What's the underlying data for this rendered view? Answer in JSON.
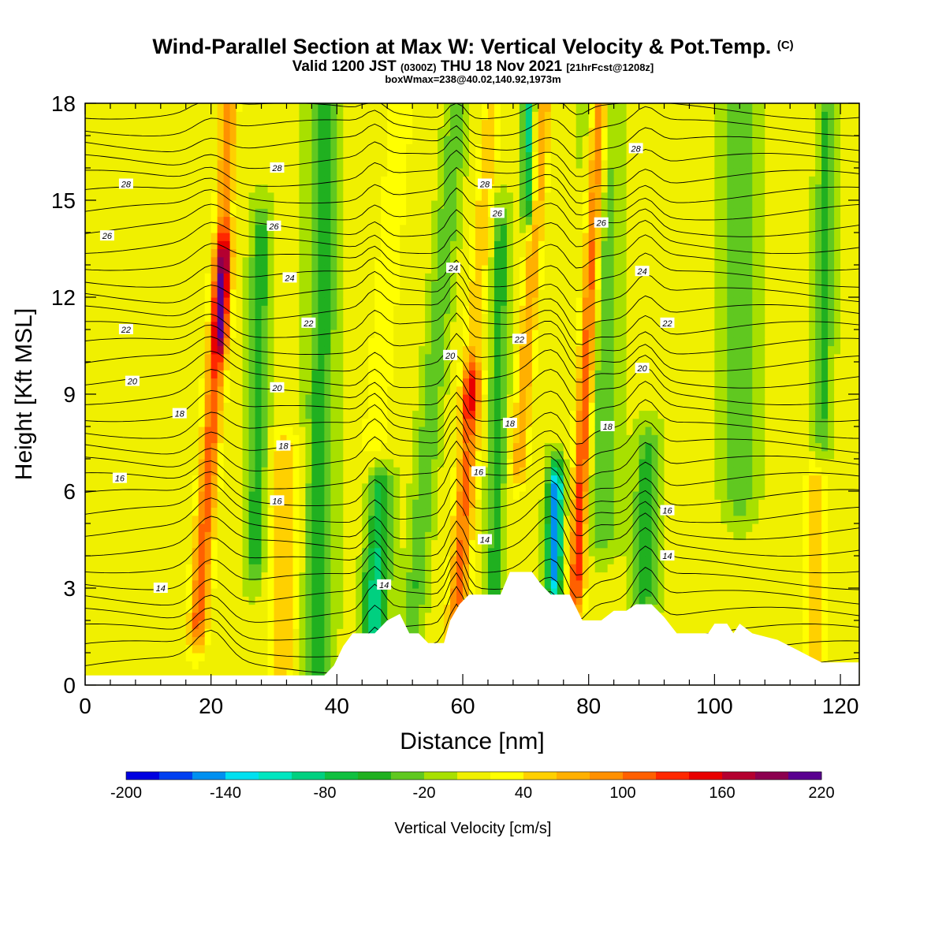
{
  "header": {
    "title": "Wind-Parallel Section at Max W: Vertical Velocity & Pot.Temp.",
    "copyright": "(C)",
    "valid_prefix": "Valid 1200 JST",
    "valid_utc": "(0300Z)",
    "valid_date": "THU 18 Nov 2021",
    "forecast": "[21hrFcst@1208z]",
    "boxwmax": "boxWmax=238@40.02,140.92,1973m"
  },
  "chart_data": {
    "type": "heatmap",
    "xlabel": "Distance [nm]",
    "ylabel": "Height [Kft MSL]",
    "xlim": [
      0,
      123
    ],
    "ylim": [
      0,
      18
    ],
    "x_ticks": [
      "0",
      "20",
      "40",
      "60",
      "80",
      "100",
      "120"
    ],
    "y_ticks": [
      "0",
      "3",
      "6",
      "9",
      "12",
      "15",
      "18"
    ],
    "colorbar": {
      "label": "Vertical Velocity [cm/s]",
      "min": -200,
      "max": 220,
      "step": 20,
      "tick_labels": [
        "-200",
        "-140",
        "-80",
        "-20",
        "40",
        "100",
        "160",
        "220"
      ],
      "colors": [
        "#0000e0",
        "#0040f0",
        "#0090f0",
        "#00e0f0",
        "#00e6c0",
        "#00d080",
        "#10c040",
        "#20b020",
        "#60c820",
        "#a8e000",
        "#f0f000",
        "#ffff00",
        "#ffd000",
        "#ffb000",
        "#ff9000",
        "#ff6000",
        "#ff2800",
        "#e80000",
        "#b40030",
        "#8c0050",
        "#5a0090"
      ]
    },
    "terrain_kft": [
      [
        0,
        0.3
      ],
      [
        38,
        0.3
      ],
      [
        39.5,
        0.6
      ],
      [
        41,
        1.2
      ],
      [
        42.5,
        1.6
      ],
      [
        46,
        1.6
      ],
      [
        48,
        2.0
      ],
      [
        50,
        2.2
      ],
      [
        51.5,
        1.6
      ],
      [
        53,
        1.6
      ],
      [
        54.5,
        1.3
      ],
      [
        57,
        1.3
      ],
      [
        58,
        2.0
      ],
      [
        59.5,
        2.5
      ],
      [
        61,
        2.8
      ],
      [
        64,
        2.8
      ],
      [
        66,
        2.8
      ],
      [
        67.5,
        3.5
      ],
      [
        71,
        3.5
      ],
      [
        72.5,
        3.1
      ],
      [
        74,
        2.8
      ],
      [
        77,
        2.8
      ],
      [
        79,
        2.0
      ],
      [
        82,
        2.0
      ],
      [
        84,
        2.3
      ],
      [
        86,
        2.3
      ],
      [
        87.5,
        2.5
      ],
      [
        90,
        2.5
      ],
      [
        92,
        2.1
      ],
      [
        94,
        1.6
      ],
      [
        99,
        1.6
      ],
      [
        100,
        1.9
      ],
      [
        102,
        1.9
      ],
      [
        103,
        1.6
      ],
      [
        104,
        1.9
      ],
      [
        106,
        1.6
      ],
      [
        110,
        1.4
      ],
      [
        113,
        1.1
      ],
      [
        115,
        0.9
      ],
      [
        117,
        0.7
      ],
      [
        123,
        0.7
      ]
    ],
    "theta_contour_labels": [
      {
        "x": 12,
        "y": 3.0,
        "text": "14"
      },
      {
        "x": 47.5,
        "y": 3.1,
        "text": "14"
      },
      {
        "x": 63.5,
        "y": 4.5,
        "text": "14"
      },
      {
        "x": 92.5,
        "y": 4.0,
        "text": "14"
      },
      {
        "x": 5.5,
        "y": 6.4,
        "text": "16"
      },
      {
        "x": 30.5,
        "y": 5.7,
        "text": "16"
      },
      {
        "x": 62.5,
        "y": 6.6,
        "text": "16"
      },
      {
        "x": 92.5,
        "y": 5.4,
        "text": "16"
      },
      {
        "x": 15,
        "y": 8.4,
        "text": "18"
      },
      {
        "x": 31.5,
        "y": 7.4,
        "text": "18"
      },
      {
        "x": 67.5,
        "y": 8.1,
        "text": "18"
      },
      {
        "x": 83,
        "y": 8.0,
        "text": "18"
      },
      {
        "x": 7.5,
        "y": 9.4,
        "text": "20"
      },
      {
        "x": 30.5,
        "y": 9.2,
        "text": "20"
      },
      {
        "x": 58,
        "y": 10.2,
        "text": "20"
      },
      {
        "x": 88.5,
        "y": 9.8,
        "text": "20"
      },
      {
        "x": 6.5,
        "y": 11.0,
        "text": "22"
      },
      {
        "x": 35.5,
        "y": 11.2,
        "text": "22"
      },
      {
        "x": 69,
        "y": 10.7,
        "text": "22"
      },
      {
        "x": 92.5,
        "y": 11.2,
        "text": "22"
      },
      {
        "x": 32.5,
        "y": 12.6,
        "text": "24"
      },
      {
        "x": 58.5,
        "y": 12.9,
        "text": "24"
      },
      {
        "x": 88.5,
        "y": 12.8,
        "text": "24"
      },
      {
        "x": 3.5,
        "y": 13.9,
        "text": "26"
      },
      {
        "x": 30,
        "y": 14.2,
        "text": "26"
      },
      {
        "x": 65.5,
        "y": 14.6,
        "text": "26"
      },
      {
        "x": 82,
        "y": 14.3,
        "text": "26"
      },
      {
        "x": 6.5,
        "y": 15.5,
        "text": "28"
      },
      {
        "x": 30.5,
        "y": 16.0,
        "text": "28"
      },
      {
        "x": 63.5,
        "y": 15.5,
        "text": "28"
      },
      {
        "x": 87.5,
        "y": 16.6,
        "text": "28"
      }
    ]
  }
}
